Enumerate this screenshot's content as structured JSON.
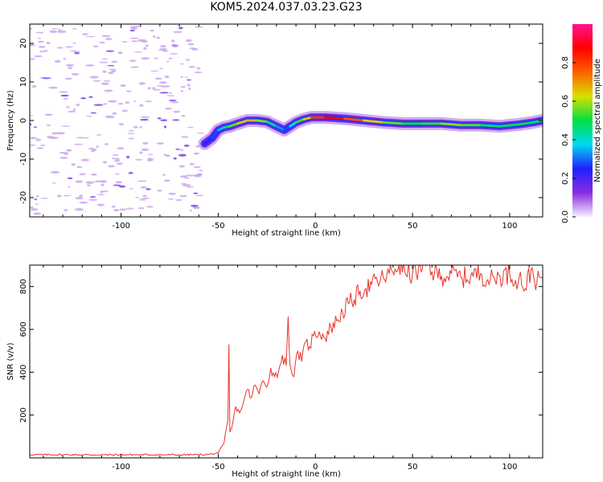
{
  "title": "KOM5.2024.037.03.23.G23",
  "colors": {
    "snr_line": "#e8332b",
    "low_amplitude_fill": "#c9a3ef",
    "mid_amplitude_fill": "#7d3df0"
  },
  "chart_data": [
    {
      "type": "heatmap",
      "name": "spectrogram",
      "xlabel": "Height of straight line (km)",
      "ylabel": "Frequency (Hz)",
      "xlim": [
        -147,
        117
      ],
      "ylim": [
        -25,
        25
      ],
      "xticks": [
        -100,
        -50,
        0,
        50,
        100
      ],
      "yticks": [
        -20,
        -10,
        0,
        10,
        20
      ],
      "colorbar": {
        "label": "Normalized spectral amplitude",
        "range": [
          0,
          1
        ],
        "ticks": [
          "0.0",
          "0.2",
          "0.4",
          "0.6",
          "0.8"
        ],
        "colormap": [
          "#f5f0ff",
          "#8a2be2",
          "#2020ff",
          "#00d8f0",
          "#00e040",
          "#d8e000",
          "#ff6000",
          "#ff0000",
          "#ff1090"
        ]
      },
      "ridge": {
        "x": [
          -57,
          -53,
          -50,
          -47,
          -44,
          -40,
          -35,
          -30,
          -25,
          -20,
          -16,
          -13,
          -10,
          -6,
          -2,
          5,
          15,
          25,
          35,
          45,
          55,
          65,
          75,
          85,
          95,
          105,
          112,
          117
        ],
        "y": [
          -6,
          -4.5,
          -2.5,
          -1.8,
          -1.5,
          -0.8,
          0,
          0,
          -0.3,
          -1.5,
          -2.5,
          -1.5,
          -0.5,
          0.3,
          0.8,
          0.8,
          0.5,
          0,
          -0.5,
          -0.8,
          -0.8,
          -0.8,
          -1.2,
          -1.2,
          -1.5,
          -1,
          -0.5,
          0
        ],
        "amplitude": [
          0.2,
          0.25,
          0.3,
          0.4,
          0.5,
          0.6,
          0.7,
          0.65,
          0.5,
          0.4,
          0.25,
          0.3,
          0.45,
          0.6,
          0.7,
          0.9,
          0.85,
          0.7,
          0.6,
          0.5,
          0.5,
          0.55,
          0.6,
          0.5,
          0.45,
          0.5,
          0.5,
          0.45
        ]
      },
      "noise_region_x": [
        -147,
        -57
      ]
    },
    {
      "type": "line",
      "name": "snr",
      "xlabel": "Height of straight line (km)",
      "ylabel": "SNR (v/v)",
      "xlim": [
        -147,
        117
      ],
      "ylim": [
        0,
        900
      ],
      "xticks": [
        -100,
        -50,
        0,
        50,
        100
      ],
      "yticks": [
        200,
        400,
        600,
        800
      ],
      "x": [
        -147,
        -130,
        -110,
        -90,
        -70,
        -55,
        -50,
        -47,
        -46,
        -45,
        -44.5,
        -44,
        -43,
        -41,
        -39,
        -37,
        -35,
        -33,
        -31,
        -29,
        -27,
        -25,
        -23,
        -21,
        -19,
        -17,
        -15,
        -14,
        -13,
        -11,
        -9,
        -7,
        -5,
        -3,
        -1,
        2,
        5,
        8,
        11,
        14,
        17,
        20,
        23,
        26,
        29,
        32,
        35,
        38,
        41,
        43,
        46,
        50,
        55,
        58,
        60,
        65,
        70,
        75,
        80,
        85,
        90,
        95,
        100,
        103,
        105,
        108,
        111,
        114,
        117
      ],
      "y": [
        15,
        15,
        14,
        15,
        14,
        16,
        22,
        70,
        130,
        180,
        530,
        120,
        140,
        240,
        210,
        260,
        320,
        280,
        340,
        300,
        360,
        330,
        420,
        380,
        400,
        480,
        430,
        660,
        430,
        380,
        500,
        450,
        540,
        520,
        570,
        590,
        560,
        610,
        640,
        680,
        720,
        740,
        780,
        790,
        810,
        820,
        840,
        860,
        880,
        900,
        870,
        860,
        880,
        910,
        870,
        850,
        860,
        840,
        850,
        860,
        830,
        850,
        860,
        830,
        850,
        790,
        880,
        820,
        840
      ]
    }
  ]
}
